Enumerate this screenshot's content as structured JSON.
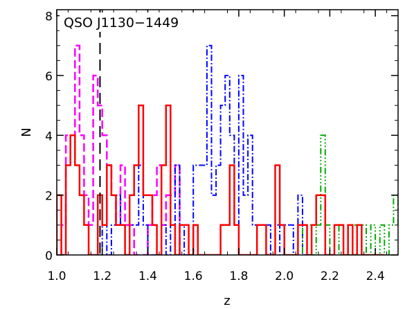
{
  "chart_data": {
    "type": "histogram",
    "annotation": "QSO J1130−1449",
    "xlabel": "z",
    "ylabel": "N",
    "xlim": [
      1.0,
      2.5
    ],
    "ylim": [
      0,
      8.2
    ],
    "xticks": [
      1.0,
      1.2,
      1.4,
      1.6,
      1.8,
      2.0,
      2.2,
      2.4
    ],
    "xtick_labels": [
      "1.0",
      "1.2",
      "1.4",
      "1.6",
      "1.8",
      "2.0",
      "2.2",
      "2.4"
    ],
    "yticks": [
      0,
      2,
      4,
      6,
      8
    ],
    "ytick_labels": [
      "0",
      "2",
      "4",
      "6",
      "8"
    ],
    "qso_redshift_marker": 1.19,
    "bin_width": 0.02,
    "grid": false,
    "series": [
      {
        "color": "#ff00ff",
        "dash": "12,5",
        "stroke_width": 2.5,
        "x_start": 1.02,
        "counts": [
          1,
          4,
          4,
          7,
          4,
          2,
          1,
          6,
          5,
          4,
          3,
          2,
          1,
          3,
          1,
          1,
          0,
          0,
          0,
          1,
          2,
          3,
          1,
          2,
          2,
          3,
          0
        ]
      },
      {
        "color": "#0000ff",
        "dash": "9,3,2,3",
        "stroke_width": 2,
        "x_start": 1.18,
        "counts": [
          0,
          1,
          0,
          1,
          2,
          1,
          0,
          1,
          1,
          3,
          1,
          0,
          0,
          0,
          1,
          0,
          1,
          3,
          1,
          0,
          0,
          3,
          3,
          3,
          7,
          2,
          3,
          5,
          6,
          4,
          1,
          6,
          2,
          4,
          1,
          1,
          1,
          1,
          0,
          1,
          0,
          1,
          1,
          0,
          2,
          0
        ]
      },
      {
        "color": "#00aa00",
        "dash": "9,3,2,3,2,3,2,3",
        "stroke_width": 2,
        "x_start": 2.06,
        "counts": [
          1,
          0,
          1,
          0,
          1,
          4,
          1,
          0,
          1,
          0,
          0,
          0,
          1,
          0,
          1,
          0,
          1,
          0,
          1,
          0,
          1,
          2,
          1,
          2
        ]
      },
      {
        "color": "#ff0000",
        "dash": "",
        "stroke_width": 2.5,
        "x_start": 1.0,
        "counts": [
          2,
          0,
          3,
          4,
          3,
          2,
          1,
          0,
          0,
          2,
          1,
          3,
          2,
          1,
          1,
          0,
          2,
          3,
          5,
          2,
          2,
          1,
          0,
          3,
          5,
          1,
          0,
          1,
          1,
          0,
          1,
          0,
          0,
          0,
          0,
          0,
          1,
          1,
          3,
          1,
          0,
          0,
          0,
          0,
          1,
          1,
          0,
          0,
          3,
          1,
          0,
          0,
          0,
          1,
          1,
          0,
          1,
          2,
          2,
          0,
          0,
          1,
          1,
          0,
          1,
          0,
          1,
          0,
          0,
          0,
          0,
          0
        ]
      }
    ]
  }
}
